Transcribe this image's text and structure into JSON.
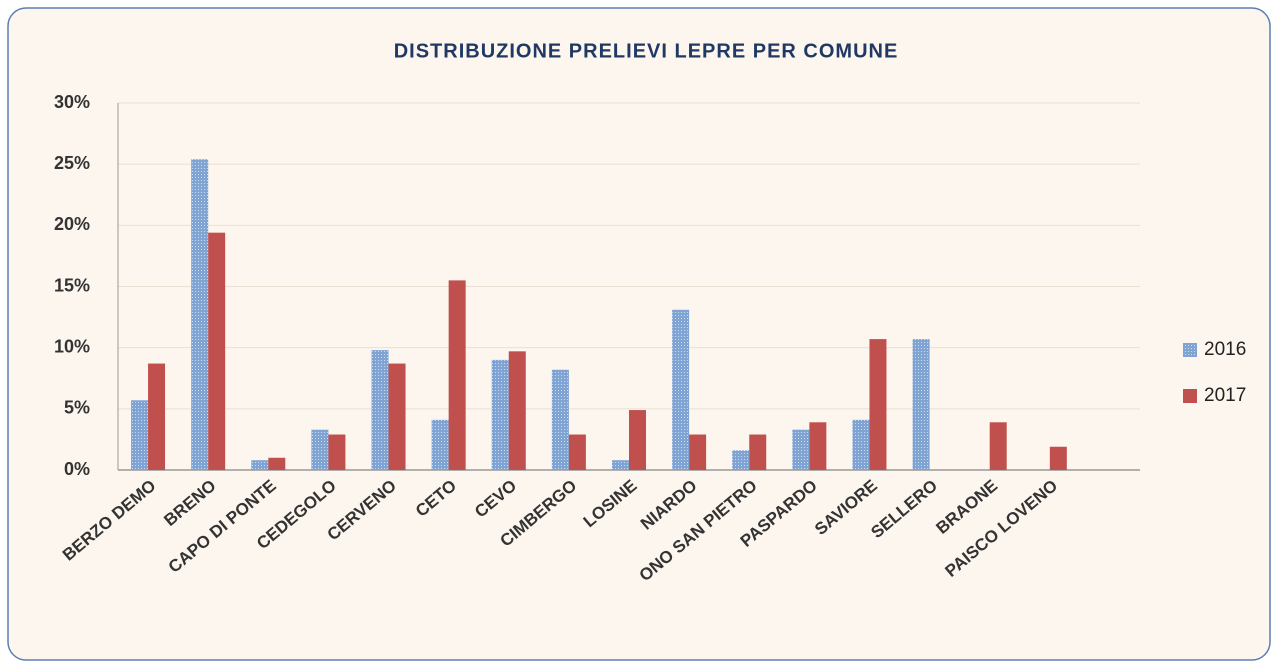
{
  "chart_data": {
    "type": "bar",
    "title": "DISTRIBUZIONE PRELIEVI LEPRE PER COMUNE",
    "categories": [
      "BERZO DEMO",
      "BRENO",
      "CAPO DI PONTE",
      "CEDEGOLO",
      "CERVENO",
      "CETO",
      "CEVO",
      "CIMBERGO",
      "LOSINE",
      "NIARDO",
      "ONO SAN PIETRO",
      "PASPARDO",
      "SAVIORE",
      "SELLERO",
      "BRAONE",
      "PAISCO LOVENO",
      null
    ],
    "series": [
      {
        "name": "2016",
        "color": "#7fa3d3",
        "values": [
          5.7,
          25.4,
          0.8,
          3.3,
          9.8,
          4.1,
          9.0,
          8.2,
          0.8,
          13.1,
          1.6,
          3.3,
          4.1,
          10.7,
          0,
          0,
          null
        ]
      },
      {
        "name": "2017",
        "color": "#c0504d",
        "values": [
          8.7,
          19.4,
          1.0,
          2.9,
          8.7,
          15.5,
          9.7,
          2.9,
          4.9,
          2.9,
          2.9,
          3.9,
          10.7,
          0,
          3.9,
          1.9,
          null
        ]
      }
    ],
    "ylim": [
      0,
      30
    ],
    "yticks": [
      {
        "value": 0,
        "label": "0%"
      },
      {
        "value": 5,
        "label": "5%"
      },
      {
        "value": 10,
        "label": "10%"
      },
      {
        "value": 15,
        "label": "15%"
      },
      {
        "value": 20,
        "label": "20%"
      },
      {
        "value": 25,
        "label": "25%"
      },
      {
        "value": 30,
        "label": "30%"
      }
    ],
    "grid": true,
    "legend": "right"
  }
}
